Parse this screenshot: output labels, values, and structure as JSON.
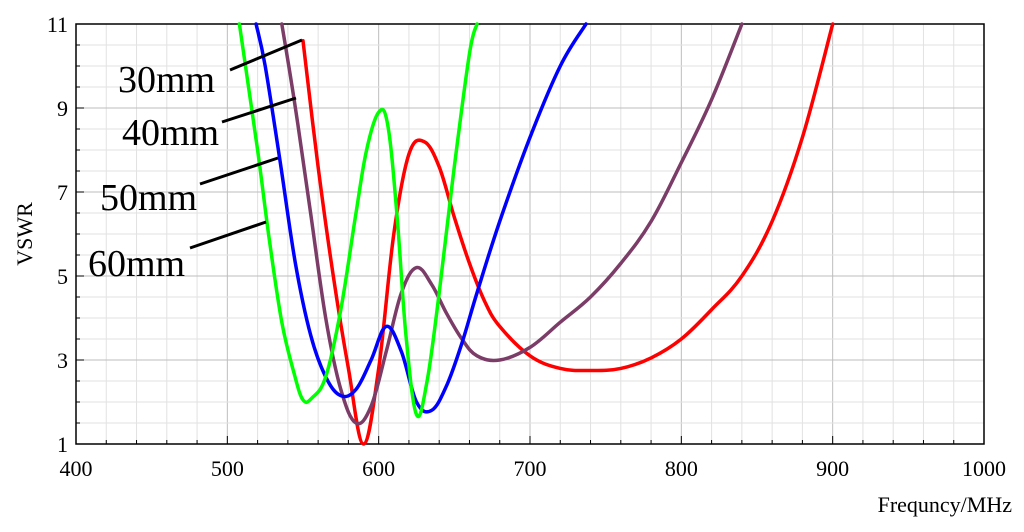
{
  "chart_data": {
    "type": "line",
    "title": "",
    "xlabel": "Frequncy/MHz",
    "ylabel": "VSWR",
    "xlim": [
      400,
      1000
    ],
    "ylim": [
      1,
      11
    ],
    "x_ticks": [
      "400",
      "500",
      "600",
      "700",
      "800",
      "900",
      "1000"
    ],
    "y_ticks": [
      "1",
      "3",
      "5",
      "7",
      "9",
      "11"
    ],
    "grid": true,
    "legend": "annotations with leader lines, upper-left",
    "series": [
      {
        "name": "30mm",
        "color": "#ff0000",
        "x": [
          550,
          560,
          570,
          580,
          590,
          600,
          610,
          620,
          630,
          640,
          650,
          660,
          670,
          680,
          700,
          720,
          740,
          760,
          780,
          800,
          820,
          840,
          860,
          880,
          900
        ],
        "y": [
          10.6,
          7.6,
          5.0,
          2.8,
          1.0,
          2.8,
          6.0,
          7.9,
          8.2,
          7.6,
          6.4,
          5.3,
          4.4,
          3.8,
          3.1,
          2.8,
          2.75,
          2.8,
          3.05,
          3.5,
          4.2,
          5.0,
          6.3,
          8.3,
          11.0
        ]
      },
      {
        "name": "40mm",
        "color": "#7b3c68",
        "x": [
          536,
          545,
          555,
          565,
          575,
          585,
          595,
          605,
          615,
          625,
          635,
          645,
          655,
          665,
          680,
          700,
          720,
          740,
          760,
          780,
          800,
          820,
          840
        ],
        "y": [
          11.0,
          9.0,
          6.5,
          4.0,
          2.3,
          1.5,
          1.9,
          3.2,
          4.6,
          5.2,
          4.8,
          4.1,
          3.5,
          3.1,
          3.0,
          3.3,
          3.9,
          4.5,
          5.3,
          6.3,
          7.7,
          9.2,
          11.0
        ]
      },
      {
        "name": "50mm",
        "color": "#0000ff",
        "x": [
          519,
          525,
          535,
          545,
          555,
          565,
          575,
          585,
          595,
          605,
          615,
          625,
          635,
          645,
          655,
          665,
          680,
          700,
          720,
          737
        ],
        "y": [
          11.0,
          10.0,
          7.7,
          5.3,
          3.6,
          2.6,
          2.15,
          2.3,
          3.0,
          3.8,
          3.2,
          2.0,
          1.8,
          2.4,
          3.4,
          4.6,
          6.3,
          8.3,
          10.0,
          11.0
        ]
      },
      {
        "name": "60mm",
        "color": "#00ff00",
        "x": [
          508,
          512,
          520,
          528,
          536,
          544,
          550,
          556,
          565,
          575,
          585,
          592,
          600,
          606,
          612,
          618,
          625,
          632,
          640,
          650,
          660,
          665
        ],
        "y": [
          11.0,
          10.0,
          8.0,
          5.8,
          3.9,
          2.7,
          2.05,
          2.1,
          2.6,
          4.2,
          6.5,
          8.0,
          8.9,
          8.6,
          6.5,
          3.6,
          1.7,
          2.5,
          4.6,
          7.6,
          10.3,
          11.0
        ]
      }
    ]
  }
}
